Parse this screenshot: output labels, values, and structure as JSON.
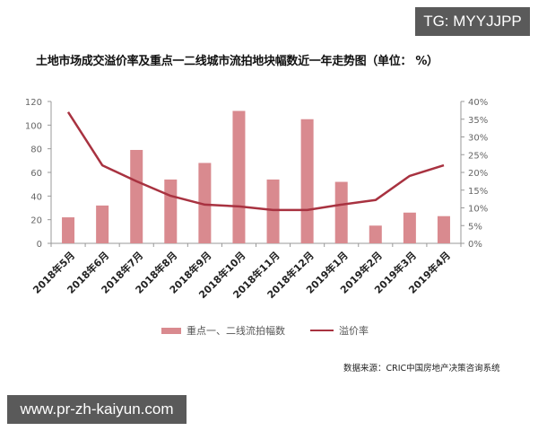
{
  "watermarks": {
    "top_right": "TG: MYYJJPP",
    "bottom_left": "www.pr-zh-kaiyun.com"
  },
  "colors": {
    "bar": "#d98a8f",
    "line": "#a83240",
    "axis": "#999999",
    "badge_bg": "#5a5a5a"
  },
  "chart_data": {
    "type": "bar+line",
    "title": "土地市场成交溢价率及重点一二线城市流拍地块幅数近一年走势图（单位： %）",
    "categories": [
      "2018年5月",
      "2018年6月",
      "2018年7月",
      "2018年8月",
      "2018年9月",
      "2018年10月",
      "2018年11月",
      "2018年12月",
      "2019年1月",
      "2019年2月",
      "2019年3月",
      "2019年4月"
    ],
    "series": [
      {
        "name": "重点一、二线流拍幅数",
        "type": "bar",
        "axis": "left",
        "values": [
          22,
          32,
          79,
          54,
          68,
          112,
          54,
          105,
          52,
          15,
          26,
          23
        ]
      },
      {
        "name": "溢价率",
        "type": "line",
        "axis": "right",
        "values": [
          37,
          22,
          17.5,
          13.4,
          10.9,
          10.4,
          9.4,
          9.4,
          10.9,
          12.2,
          19,
          22
        ]
      }
    ],
    "left_axis": {
      "ylim": [
        0,
        120
      ],
      "ticks": [
        "0",
        "20",
        "40",
        "60",
        "80",
        "100",
        "120"
      ]
    },
    "right_axis": {
      "ylim": [
        0,
        40
      ],
      "ticks": [
        "0%",
        "5%",
        "10%",
        "15%",
        "20%",
        "25%",
        "30%",
        "35%",
        "40%"
      ]
    },
    "legend": {
      "position": "bottom",
      "entries": [
        "重点一、二线流拍幅数",
        "溢价率"
      ]
    },
    "grid": false,
    "source": "数据来源：CRIC中国房地产决策咨询系统"
  }
}
